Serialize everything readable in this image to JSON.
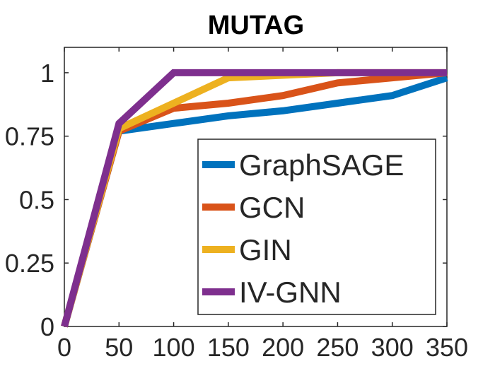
{
  "chart_data": {
    "type": "line",
    "title": "MUTAG",
    "xlabel": "",
    "ylabel": "",
    "xlim": [
      0,
      350
    ],
    "ylim": [
      0,
      1.1
    ],
    "x": [
      0,
      50,
      100,
      150,
      200,
      250,
      300,
      350
    ],
    "xticks": [
      0,
      50,
      100,
      150,
      200,
      250,
      300,
      350
    ],
    "xtick_labels": [
      "0",
      "50",
      "100",
      "150",
      "200",
      "250",
      "300",
      "350"
    ],
    "yticks": [
      0,
      0.25,
      0.5,
      0.75,
      1
    ],
    "ytick_labels": [
      "0",
      "0.25",
      "0.5",
      "0.75",
      "1"
    ],
    "grid": false,
    "legend_position": "lower-right",
    "series": [
      {
        "name": "GraphSAGE",
        "color": "#0072BD",
        "values": [
          0,
          0.77,
          0.8,
          0.83,
          0.85,
          0.88,
          0.91,
          0.98
        ]
      },
      {
        "name": "GCN",
        "color": "#D95319",
        "values": [
          0,
          0.77,
          0.86,
          0.88,
          0.91,
          0.96,
          0.98,
          1.0
        ]
      },
      {
        "name": "GIN",
        "color": "#EDB120",
        "values": [
          0,
          0.78,
          0.88,
          0.98,
          0.99,
          1.0,
          1.0,
          1.0
        ]
      },
      {
        "name": "IV-GNN",
        "color": "#7E2F8E",
        "values": [
          0,
          0.8,
          1.0,
          1.0,
          1.0,
          1.0,
          1.0,
          1.0
        ]
      }
    ]
  }
}
